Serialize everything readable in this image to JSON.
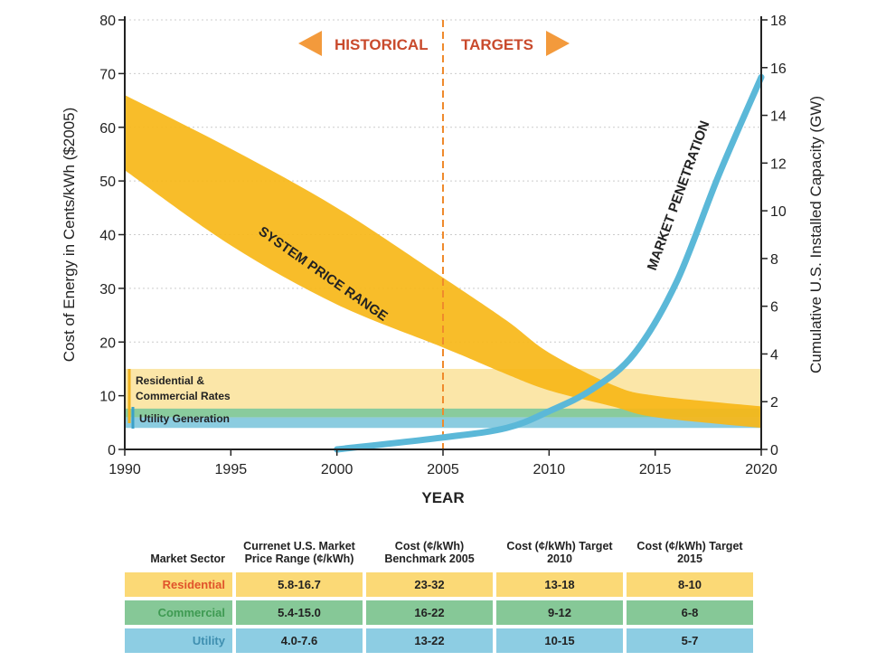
{
  "chart_data": {
    "type": "area",
    "title": "",
    "xlabel": "YEAR",
    "ylabel": "Cost of Energy in Cents/kWh ($2005)",
    "y2label": "Cumulative U.S. Installed Capacity (GW)",
    "xlim": [
      1990,
      2020
    ],
    "ylim": [
      0,
      80
    ],
    "y2lim": [
      0,
      18
    ],
    "xticks": [
      "1990",
      "1995",
      "2000",
      "2005",
      "2010",
      "2015",
      "2020"
    ],
    "yticks": [
      "0",
      "10",
      "20",
      "30",
      "40",
      "50",
      "60",
      "70",
      "80"
    ],
    "y2ticks": [
      "0",
      "2",
      "4",
      "6",
      "8",
      "10",
      "12",
      "14",
      "16",
      "18"
    ],
    "annotations": {
      "historical": "HISTORICAL",
      "targets": "TARGETS",
      "divider_year": 2005,
      "band_label": "SYSTEM PRICE RANGE",
      "curve_label": "MARKET PENETRATION",
      "rates_label": "Residential & Commercial Rates",
      "utility_label": "Utility Generation"
    },
    "series": [
      {
        "name": "System Price Range",
        "axis": "left",
        "color": "#f7b718",
        "x": [
          1990,
          1995,
          2000,
          2005,
          2008,
          2010,
          2013,
          2015,
          2020
        ],
        "upper": [
          66,
          56,
          45,
          32,
          24,
          18,
          12,
          10,
          8
        ],
        "lower": [
          52,
          38,
          27,
          19,
          14,
          11,
          8,
          6,
          4
        ]
      },
      {
        "name": "Market Penetration",
        "axis": "right",
        "color": "#5bb8d8",
        "x": [
          2000,
          2005,
          2008,
          2010,
          2012,
          2014,
          2016,
          2018,
          2020
        ],
        "y": [
          0,
          0.5,
          0.9,
          1.6,
          2.5,
          4,
          7,
          11.5,
          15.6
        ]
      },
      {
        "name": "Residential & Commercial Rates",
        "axis": "left",
        "color": "#fbe6a8",
        "range": [
          5.8,
          15
        ]
      },
      {
        "name": "Commercial Rates",
        "axis": "left",
        "color": "#7cc89b",
        "range": [
          6,
          7.6
        ]
      },
      {
        "name": "Utility Generation",
        "axis": "left",
        "color": "#7ec7dd",
        "range": [
          4,
          6
        ]
      }
    ]
  },
  "table": {
    "headers": [
      "Market Sector",
      "Currenet U.S. Market Price Range (¢/kWh)",
      "Cost (¢/kWh) Benchmark 2005",
      "Cost (¢/kWh) Target 2010",
      "Cost (¢/kWh) Target 2015"
    ],
    "rows": [
      {
        "sector": "Residential",
        "cells": [
          "5.8-16.7",
          "23-32",
          "13-18",
          "8-10"
        ],
        "bg": "#fbd976",
        "fg": "#e0532b"
      },
      {
        "sector": "Commercial",
        "cells": [
          "5.4-15.0",
          "16-22",
          "9-12",
          "6-8"
        ],
        "bg": "#86c897",
        "fg": "#3e9a52"
      },
      {
        "sector": "Utility",
        "cells": [
          "4.0-7.6",
          "13-22",
          "10-15",
          "5-7"
        ],
        "bg": "#8dcde3",
        "fg": "#3f8fb0"
      }
    ]
  }
}
